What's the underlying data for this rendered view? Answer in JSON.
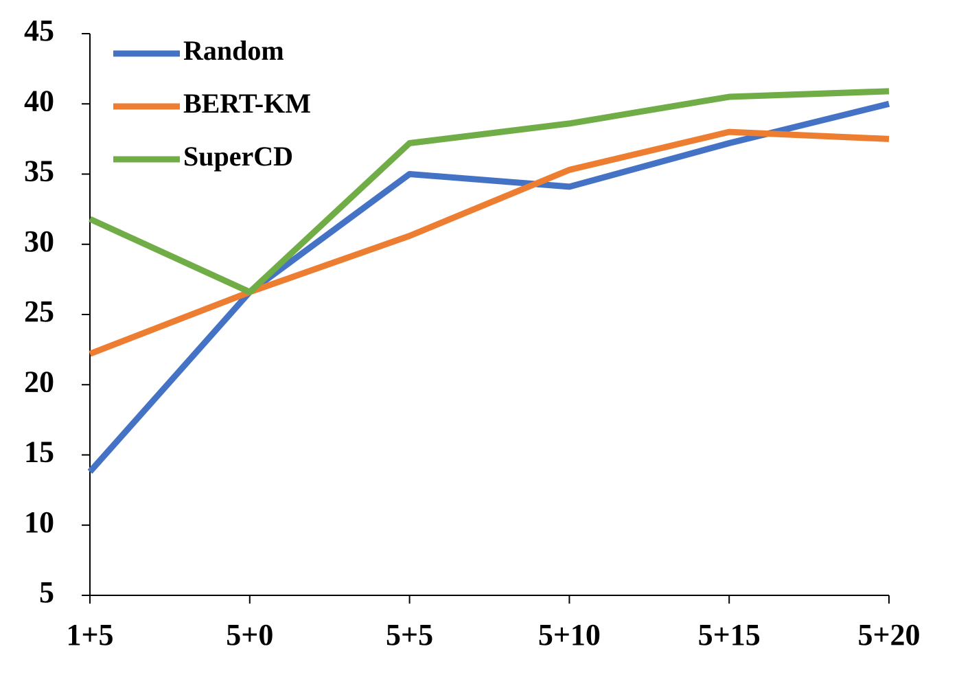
{
  "chart_data": {
    "type": "line",
    "categories": [
      "1+5",
      "5+0",
      "5+5",
      "5+10",
      "5+15",
      "5+20"
    ],
    "series": [
      {
        "name": "Random",
        "color": "#4472c4",
        "values": [
          13.8,
          26.6,
          35.0,
          34.1,
          37.2,
          40.0
        ]
      },
      {
        "name": "BERT-KM",
        "color": "#ed7d31",
        "values": [
          22.2,
          26.6,
          30.6,
          35.3,
          38.0,
          37.5
        ]
      },
      {
        "name": "SuperCD",
        "color": "#70ad47",
        "values": [
          31.8,
          26.6,
          37.2,
          38.6,
          40.5,
          40.9
        ]
      }
    ],
    "ylim": [
      5,
      45
    ],
    "yticks": [
      5,
      10,
      15,
      20,
      25,
      30,
      35,
      40,
      45
    ],
    "grid": false,
    "legend": "upper-left"
  }
}
